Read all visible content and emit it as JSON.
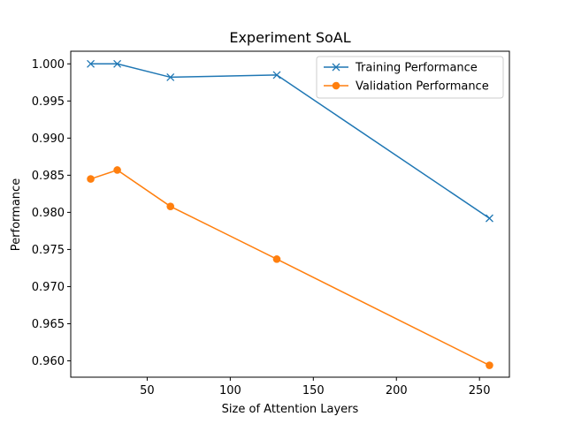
{
  "chart_data": {
    "type": "line",
    "title": "Experiment SoAL",
    "xlabel": "Size of Attention Layers",
    "ylabel": "Performance",
    "x": [
      16,
      32,
      64,
      128,
      256
    ],
    "xlim": [
      4,
      268
    ],
    "ylim": [
      0.9578,
      1.0017
    ],
    "xticks": [
      50,
      100,
      150,
      200,
      250
    ],
    "yticks": [
      0.96,
      0.965,
      0.97,
      0.975,
      0.98,
      0.985,
      0.99,
      0.995,
      1.0
    ],
    "grid": false,
    "legend_position": "top-right",
    "series": [
      {
        "name": "Training Performance",
        "color": "#1f77b4",
        "marker": "x",
        "values": [
          1.0,
          1.0,
          0.9982,
          0.9985,
          0.9792
        ]
      },
      {
        "name": "Validation Performance",
        "color": "#ff7f0e",
        "marker": "circle",
        "values": [
          0.9845,
          0.9857,
          0.9808,
          0.9737,
          0.9594
        ]
      }
    ]
  }
}
